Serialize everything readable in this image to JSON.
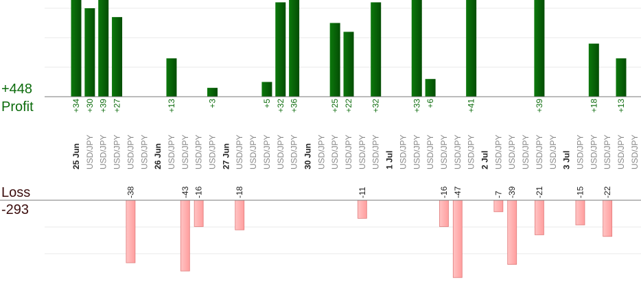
{
  "labels": {
    "profit_total": "+448",
    "profit_title": "Profit",
    "loss_title": "Loss",
    "loss_total": "-293"
  },
  "colors": {
    "profit_bar": "#0a640a",
    "profit_text": "#0b6b0b",
    "loss_bar": "#ffb2b2",
    "loss_border": "#e07b7b",
    "loss_text": "#3a0c0c",
    "pair_text": "#888888",
    "date_text": "#222222",
    "grid": "#e9e9e9",
    "axis": "#777777"
  },
  "chart_data": {
    "type": "bar",
    "profit_series": [
      {
        "slot": 0,
        "value": 34
      },
      {
        "slot": 1,
        "value": 30
      },
      {
        "slot": 2,
        "value": 39
      },
      {
        "slot": 3,
        "value": 27
      },
      {
        "slot": 7,
        "value": 13
      },
      {
        "slot": 10,
        "value": 3
      },
      {
        "slot": 14,
        "value": 5
      },
      {
        "slot": 15,
        "value": 32
      },
      {
        "slot": 16,
        "value": 36
      },
      {
        "slot": 19,
        "value": 25
      },
      {
        "slot": 20,
        "value": 22
      },
      {
        "slot": 22,
        "value": 32
      },
      {
        "slot": 25,
        "value": 33
      },
      {
        "slot": 26,
        "value": 6
      },
      {
        "slot": 29,
        "value": 41
      },
      {
        "slot": 34,
        "value": 39
      },
      {
        "slot": 38,
        "value": 18
      },
      {
        "slot": 40,
        "value": 13
      }
    ],
    "loss_series": [
      {
        "slot": 4,
        "value": -38
      },
      {
        "slot": 8,
        "value": -43
      },
      {
        "slot": 9,
        "value": -16
      },
      {
        "slot": 12,
        "value": -18
      },
      {
        "slot": 21,
        "value": -11
      },
      {
        "slot": 27,
        "value": -16
      },
      {
        "slot": 28,
        "value": -47
      },
      {
        "slot": 31,
        "value": -7
      },
      {
        "slot": 32,
        "value": -39
      },
      {
        "slot": 34,
        "value": -21
      },
      {
        "slot": 37,
        "value": -15
      },
      {
        "slot": 39,
        "value": -22
      }
    ],
    "categories": [
      {
        "text": "25 Jun",
        "kind": "date"
      },
      {
        "text": "USD/JPY",
        "kind": "pair"
      },
      {
        "text": "USD/JPY",
        "kind": "pair"
      },
      {
        "text": "USD/JPY",
        "kind": "pair"
      },
      {
        "text": "USD/JPY",
        "kind": "pair"
      },
      {
        "text": "USD/JPY",
        "kind": "pair"
      },
      {
        "text": "26 Jun",
        "kind": "date"
      },
      {
        "text": "USD/JPY",
        "kind": "pair"
      },
      {
        "text": "USD/JPY",
        "kind": "pair"
      },
      {
        "text": "USD/JPY",
        "kind": "pair"
      },
      {
        "text": "USD/JPY",
        "kind": "pair"
      },
      {
        "text": "27 Jun",
        "kind": "date"
      },
      {
        "text": "USD/JPY",
        "kind": "pair"
      },
      {
        "text": "USD/JPY",
        "kind": "pair"
      },
      {
        "text": "USD/JPY",
        "kind": "pair"
      },
      {
        "text": "USD/JPY",
        "kind": "pair"
      },
      {
        "text": "USD/JPY",
        "kind": "pair"
      },
      {
        "text": "30 Jun",
        "kind": "date"
      },
      {
        "text": "USD/JPY",
        "kind": "pair"
      },
      {
        "text": "USD/JPY",
        "kind": "pair"
      },
      {
        "text": "USD/JPY",
        "kind": "pair"
      },
      {
        "text": "USD/JPY",
        "kind": "pair"
      },
      {
        "text": "USD/JPY",
        "kind": "pair"
      },
      {
        "text": "1 Jul",
        "kind": "date"
      },
      {
        "text": "USD/JPY",
        "kind": "pair"
      },
      {
        "text": "USD/JPY",
        "kind": "pair"
      },
      {
        "text": "USD/JPY",
        "kind": "pair"
      },
      {
        "text": "USD/JPY",
        "kind": "pair"
      },
      {
        "text": "USD/JPY",
        "kind": "pair"
      },
      {
        "text": "USD/JPY",
        "kind": "pair"
      },
      {
        "text": "2 Jul",
        "kind": "date"
      },
      {
        "text": "USD/JPY",
        "kind": "pair"
      },
      {
        "text": "USD/JPY",
        "kind": "pair"
      },
      {
        "text": "USD/JPY",
        "kind": "pair"
      },
      {
        "text": "USD/JPY",
        "kind": "pair"
      },
      {
        "text": "USD/JPY",
        "kind": "pair"
      },
      {
        "text": "3 Jul",
        "kind": "date"
      },
      {
        "text": "USD/JPY",
        "kind": "pair"
      },
      {
        "text": "USD/JPY",
        "kind": "pair"
      },
      {
        "text": "USD/JPY",
        "kind": "pair"
      },
      {
        "text": "USD/JPY",
        "kind": "pair"
      },
      {
        "text": "USD/JPY",
        "kind": "pair"
      }
    ],
    "grid": true
  }
}
